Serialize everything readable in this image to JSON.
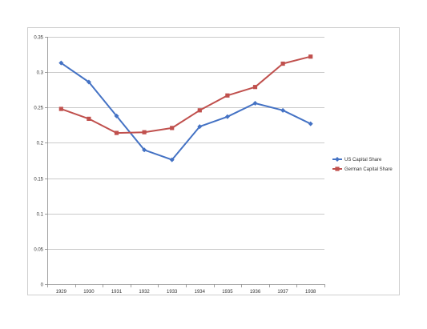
{
  "chart_data": {
    "type": "line",
    "title": "",
    "xlabel": "",
    "ylabel": "",
    "categories": [
      "1929",
      "1930",
      "1931",
      "1932",
      "1933",
      "1934",
      "1935",
      "1936",
      "1937",
      "1938"
    ],
    "ylim": [
      0,
      0.35
    ],
    "yticks": [
      0,
      0.05,
      0.1,
      0.15,
      0.2,
      0.25,
      0.3,
      0.35
    ],
    "ytick_labels": [
      "0",
      "0.05",
      "0.1",
      "0.15",
      "0.2",
      "0.25",
      "0.3",
      "0.35"
    ],
    "grid": "horizontal",
    "legend_position": "right",
    "series": [
      {
        "name": "US Capital Share",
        "color": "#4472C4",
        "marker": "diamond",
        "values": [
          0.313,
          0.286,
          0.238,
          0.19,
          0.176,
          0.223,
          0.237,
          0.256,
          0.246,
          0.227
        ]
      },
      {
        "name": "German Capital Share",
        "color": "#C0504D",
        "marker": "square",
        "values": [
          0.248,
          0.234,
          0.214,
          0.215,
          0.221,
          0.246,
          0.267,
          0.279,
          0.312,
          0.322
        ]
      }
    ]
  }
}
